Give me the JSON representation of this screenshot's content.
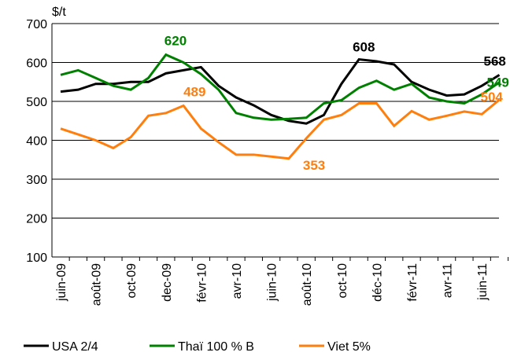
{
  "chart_data": {
    "type": "line",
    "y_label": "$/t",
    "categories": [
      "juin-09",
      null,
      "août-09",
      null,
      "oct-09",
      null,
      "dec-09",
      null,
      "févr-10",
      null,
      "avr-10",
      null,
      "juin-10",
      null,
      "août-10",
      null,
      "oct-10",
      null,
      "déc-10",
      null,
      "févr-11",
      null,
      "avr-11",
      null,
      "juin-11",
      null
    ],
    "ylim": [
      100,
      700
    ],
    "yticks": [
      100,
      200,
      300,
      400,
      500,
      600,
      700
    ],
    "grid": true,
    "legend": "bottom",
    "series": [
      {
        "name": "USA 2/4",
        "color": "#000000",
        "values": [
          525,
          530,
          545,
          545,
          550,
          550,
          572,
          580,
          588,
          540,
          510,
          490,
          465,
          450,
          443,
          465,
          545,
          608,
          603,
          595,
          550,
          530,
          515,
          518,
          540,
          568
        ],
        "value_labels": [
          null,
          null,
          null,
          null,
          null,
          null,
          null,
          null,
          null,
          null,
          null,
          null,
          null,
          null,
          null,
          null,
          null,
          "608",
          null,
          null,
          null,
          null,
          null,
          null,
          null,
          "568"
        ]
      },
      {
        "name": "Thaï 100 % B",
        "color": "#008000",
        "values": [
          568,
          580,
          560,
          540,
          530,
          560,
          620,
          600,
          570,
          530,
          470,
          458,
          453,
          455,
          458,
          495,
          503,
          535,
          553,
          530,
          545,
          510,
          500,
          495,
          518,
          549
        ],
        "value_labels": [
          null,
          null,
          null,
          null,
          null,
          null,
          "620",
          null,
          null,
          null,
          null,
          null,
          null,
          null,
          null,
          null,
          null,
          null,
          null,
          null,
          null,
          null,
          null,
          null,
          null,
          "549"
        ]
      },
      {
        "name": "Viet 5%",
        "color": "#ff7f0e",
        "values": [
          430,
          415,
          400,
          380,
          408,
          463,
          470,
          489,
          430,
          395,
          363,
          363,
          358,
          353,
          405,
          453,
          465,
          495,
          495,
          437,
          475,
          453,
          463,
          474,
          467,
          504
        ],
        "value_labels": [
          null,
          null,
          null,
          null,
          null,
          null,
          null,
          "489",
          null,
          null,
          null,
          null,
          null,
          "353",
          null,
          null,
          null,
          null,
          null,
          null,
          null,
          null,
          null,
          null,
          null,
          "504"
        ]
      }
    ]
  }
}
